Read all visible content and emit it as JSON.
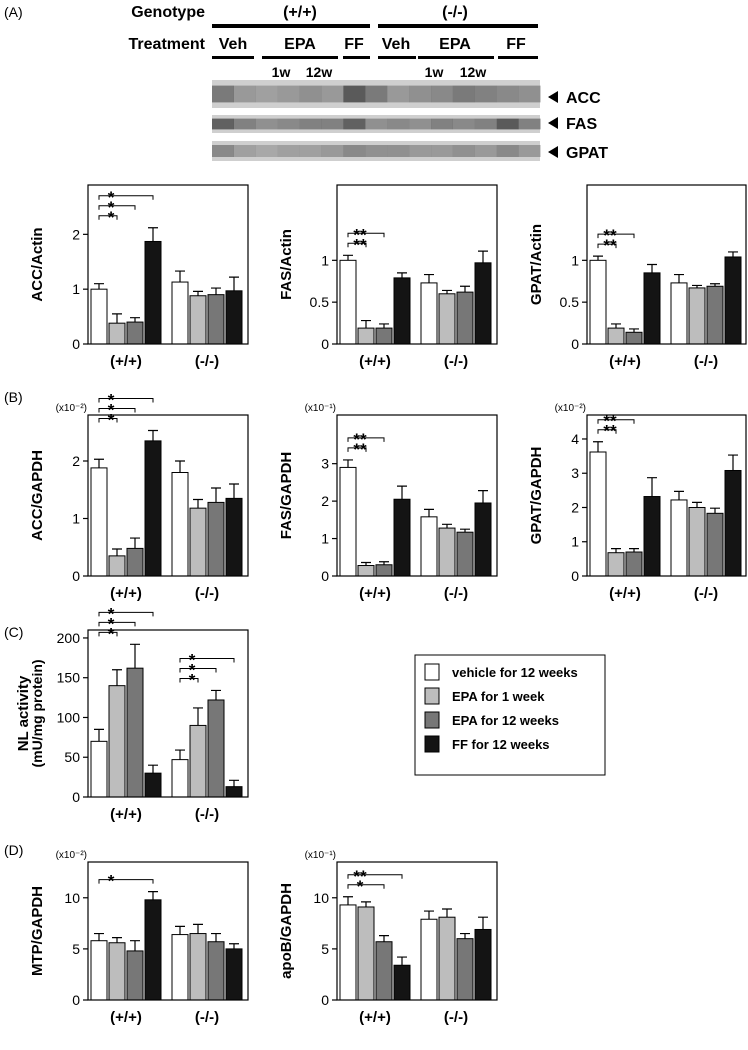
{
  "panel_labels": [
    "(A)",
    "(B)",
    "(C)",
    "(D)"
  ],
  "blot": {
    "genotype_label": "Genotype",
    "treatment_label": "Treatment",
    "genotypes": [
      "(+/+)",
      "(-/-)"
    ],
    "treatments": [
      "Veh",
      "EPA",
      "FF",
      "Veh",
      "EPA",
      "FF"
    ],
    "durations": [
      "1w",
      "12w",
      "1w",
      "12w"
    ],
    "bands": [
      "ACC",
      "FAS",
      "GPAT"
    ]
  },
  "legend": {
    "entries": [
      "vehicle for 12 weeks",
      "EPA for 1 week",
      "EPA for 12 weeks",
      "FF for 12 weeks"
    ]
  },
  "chart_data": [
    {
      "type": "bar",
      "ylabel": "ACC/Actin",
      "categories": [
        "(+/+)",
        "(-/-)"
      ],
      "ylim": [
        0,
        2.9
      ],
      "yticks": [
        0,
        1,
        2
      ],
      "series": [
        {
          "color": "#ffffff",
          "values": [
            1.0,
            1.13
          ],
          "errors": [
            0.1,
            0.2
          ]
        },
        {
          "color": "#bdbdbd",
          "values": [
            0.38,
            0.88
          ],
          "errors": [
            0.17,
            0.08
          ]
        },
        {
          "color": "#777777",
          "values": [
            0.4,
            0.9
          ],
          "errors": [
            0.08,
            0.12
          ]
        },
        {
          "color": "#141414",
          "values": [
            1.87,
            0.97
          ],
          "errors": [
            0.25,
            0.25
          ]
        }
      ],
      "annotations": [
        [
          "*",
          "*",
          "*"
        ],
        []
      ]
    },
    {
      "type": "bar",
      "ylabel": "FAS/Actin",
      "categories": [
        "(+/+)",
        "(-/-)"
      ],
      "ylim": [
        0,
        1.9
      ],
      "yticks": [
        0,
        0.5,
        1
      ],
      "series": [
        {
          "color": "#ffffff",
          "values": [
            1.0,
            0.73
          ],
          "errors": [
            0.06,
            0.1
          ]
        },
        {
          "color": "#bdbdbd",
          "values": [
            0.19,
            0.6
          ],
          "errors": [
            0.09,
            0.04
          ]
        },
        {
          "color": "#777777",
          "values": [
            0.19,
            0.62
          ],
          "errors": [
            0.05,
            0.07
          ]
        },
        {
          "color": "#141414",
          "values": [
            0.79,
            0.97
          ],
          "errors": [
            0.06,
            0.14
          ]
        }
      ],
      "annotations": [
        [
          "**",
          "**",
          null
        ],
        []
      ]
    },
    {
      "type": "bar",
      "ylabel": "GPAT/Actin",
      "categories": [
        "(+/+)",
        "(-/-)"
      ],
      "ylim": [
        0,
        1.9
      ],
      "yticks": [
        0,
        0.5,
        1
      ],
      "series": [
        {
          "color": "#ffffff",
          "values": [
            1.0,
            0.73
          ],
          "errors": [
            0.05,
            0.1
          ]
        },
        {
          "color": "#bdbdbd",
          "values": [
            0.19,
            0.67
          ],
          "errors": [
            0.05,
            0.03
          ]
        },
        {
          "color": "#777777",
          "values": [
            0.14,
            0.69
          ],
          "errors": [
            0.04,
            0.03
          ]
        },
        {
          "color": "#141414",
          "values": [
            0.85,
            1.04
          ],
          "errors": [
            0.1,
            0.06
          ]
        }
      ],
      "annotations": [
        [
          "**",
          "**",
          null
        ],
        []
      ]
    },
    {
      "type": "bar",
      "ylabel": "ACC/GAPDH",
      "scale_label": "(x10⁻²)",
      "categories": [
        "(+/+)",
        "(-/-)"
      ],
      "ylim": [
        0,
        2.8
      ],
      "yticks": [
        0,
        1,
        2
      ],
      "series": [
        {
          "color": "#ffffff",
          "values": [
            1.88,
            1.8
          ],
          "errors": [
            0.15,
            0.2
          ]
        },
        {
          "color": "#bdbdbd",
          "values": [
            0.35,
            1.18
          ],
          "errors": [
            0.12,
            0.15
          ]
        },
        {
          "color": "#777777",
          "values": [
            0.48,
            1.28
          ],
          "errors": [
            0.18,
            0.25
          ]
        },
        {
          "color": "#141414",
          "values": [
            2.35,
            1.35
          ],
          "errors": [
            0.18,
            0.25
          ]
        }
      ],
      "annotations": [
        [
          "*",
          "*",
          "*"
        ],
        []
      ]
    },
    {
      "type": "bar",
      "ylabel": "FAS/GAPDH",
      "scale_label": "(x10⁻¹)",
      "categories": [
        "(+/+)",
        "(-/-)"
      ],
      "ylim": [
        0,
        4.3
      ],
      "yticks": [
        0,
        1,
        2,
        3
      ],
      "series": [
        {
          "color": "#ffffff",
          "values": [
            2.9,
            1.58
          ],
          "errors": [
            0.2,
            0.2
          ]
        },
        {
          "color": "#bdbdbd",
          "values": [
            0.28,
            1.28
          ],
          "errors": [
            0.08,
            0.1
          ]
        },
        {
          "color": "#777777",
          "values": [
            0.3,
            1.17
          ],
          "errors": [
            0.08,
            0.08
          ]
        },
        {
          "color": "#141414",
          "values": [
            2.05,
            1.95
          ],
          "errors": [
            0.35,
            0.33
          ]
        }
      ],
      "annotations": [
        [
          "**",
          "**",
          null
        ],
        []
      ]
    },
    {
      "type": "bar",
      "ylabel": "GPAT/GAPDH",
      "scale_label": "(x10⁻²)",
      "categories": [
        "(+/+)",
        "(-/-)"
      ],
      "ylim": [
        0,
        4.7
      ],
      "yticks": [
        0,
        1,
        2,
        3,
        4
      ],
      "series": [
        {
          "color": "#ffffff",
          "values": [
            3.62,
            2.22
          ],
          "errors": [
            0.3,
            0.25
          ]
        },
        {
          "color": "#bdbdbd",
          "values": [
            0.68,
            2.0
          ],
          "errors": [
            0.12,
            0.15
          ]
        },
        {
          "color": "#777777",
          "values": [
            0.7,
            1.83
          ],
          "errors": [
            0.1,
            0.15
          ]
        },
        {
          "color": "#141414",
          "values": [
            2.32,
            3.08
          ],
          "errors": [
            0.55,
            0.45
          ]
        }
      ],
      "annotations": [
        [
          "**",
          "**",
          null
        ],
        []
      ]
    },
    {
      "type": "bar",
      "ylabel": "NL activity",
      "ylabel_unit": "(mU/mg protein)",
      "categories": [
        "(+/+)",
        "(-/-)"
      ],
      "ylim": [
        0,
        210
      ],
      "yticks": [
        0,
        50,
        100,
        150,
        200
      ],
      "series": [
        {
          "color": "#ffffff",
          "values": [
            70,
            47
          ],
          "errors": [
            15,
            12
          ]
        },
        {
          "color": "#bdbdbd",
          "values": [
            140,
            90
          ],
          "errors": [
            20,
            22
          ]
        },
        {
          "color": "#777777",
          "values": [
            162,
            122
          ],
          "errors": [
            30,
            12
          ]
        },
        {
          "color": "#141414",
          "values": [
            30,
            13
          ],
          "errors": [
            10,
            8
          ]
        }
      ],
      "annotations": [
        [
          "*",
          "*",
          "*"
        ],
        [
          "*",
          "*",
          "*"
        ]
      ]
    },
    {
      "type": "bar",
      "ylabel": "MTP/GAPDH",
      "scale_label": "(x10⁻²)",
      "categories": [
        "(+/+)",
        "(-/-)"
      ],
      "ylim": [
        0,
        13.5
      ],
      "yticks": [
        0,
        5,
        10
      ],
      "series": [
        {
          "color": "#ffffff",
          "values": [
            5.8,
            6.4
          ],
          "errors": [
            0.7,
            0.8
          ]
        },
        {
          "color": "#bdbdbd",
          "values": [
            5.6,
            6.5
          ],
          "errors": [
            0.5,
            0.9
          ]
        },
        {
          "color": "#777777",
          "values": [
            4.8,
            5.7
          ],
          "errors": [
            1.0,
            0.8
          ]
        },
        {
          "color": "#141414",
          "values": [
            9.8,
            5.0
          ],
          "errors": [
            0.8,
            0.5
          ]
        }
      ],
      "annotations": [
        [
          null,
          null,
          "*"
        ],
        []
      ]
    },
    {
      "type": "bar",
      "ylabel": "apoB/GAPDH",
      "scale_label": "(x10⁻¹)",
      "categories": [
        "(+/+)",
        "(-/-)"
      ],
      "ylim": [
        0,
        13.5
      ],
      "yticks": [
        0,
        5,
        10
      ],
      "series": [
        {
          "color": "#ffffff",
          "values": [
            9.3,
            7.9
          ],
          "errors": [
            0.8,
            0.8
          ]
        },
        {
          "color": "#bdbdbd",
          "values": [
            9.1,
            8.1
          ],
          "errors": [
            0.5,
            0.8
          ]
        },
        {
          "color": "#777777",
          "values": [
            5.7,
            6.0
          ],
          "errors": [
            0.6,
            0.5
          ]
        },
        {
          "color": "#141414",
          "values": [
            3.4,
            6.9
          ],
          "errors": [
            0.8,
            1.2
          ]
        }
      ],
      "annotations": [
        [
          null,
          "*",
          "**"
        ],
        []
      ]
    }
  ]
}
